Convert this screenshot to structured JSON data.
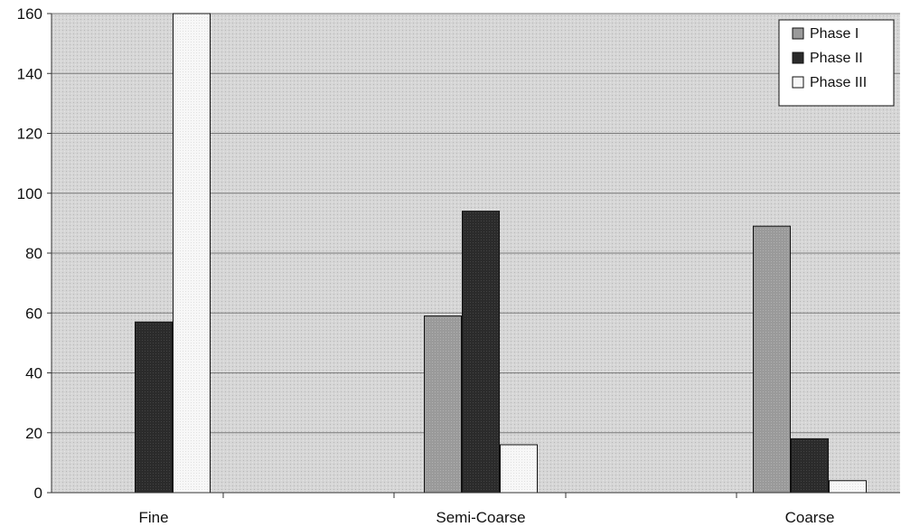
{
  "chart_data": {
    "type": "bar",
    "title": "",
    "xlabel": "",
    "ylabel": "",
    "categories": [
      "Fine",
      "Semi-Coarse",
      "Coarse"
    ],
    "series": [
      {
        "name": "Phase I",
        "values": [
          0,
          59,
          89
        ],
        "color": "#9a9a9a"
      },
      {
        "name": "Phase II",
        "values": [
          57,
          94,
          18
        ],
        "color": "#2b2b2b"
      },
      {
        "name": "Phase III",
        "values": [
          160,
          16,
          4
        ],
        "color": "#f7f7f7"
      }
    ],
    "ylim": [
      0,
      160
    ],
    "yticks": [
      0,
      20,
      40,
      60,
      80,
      100,
      120,
      140,
      160
    ],
    "grid": true,
    "legend_position": "top-right",
    "plot_background": "#d6d6d6"
  }
}
